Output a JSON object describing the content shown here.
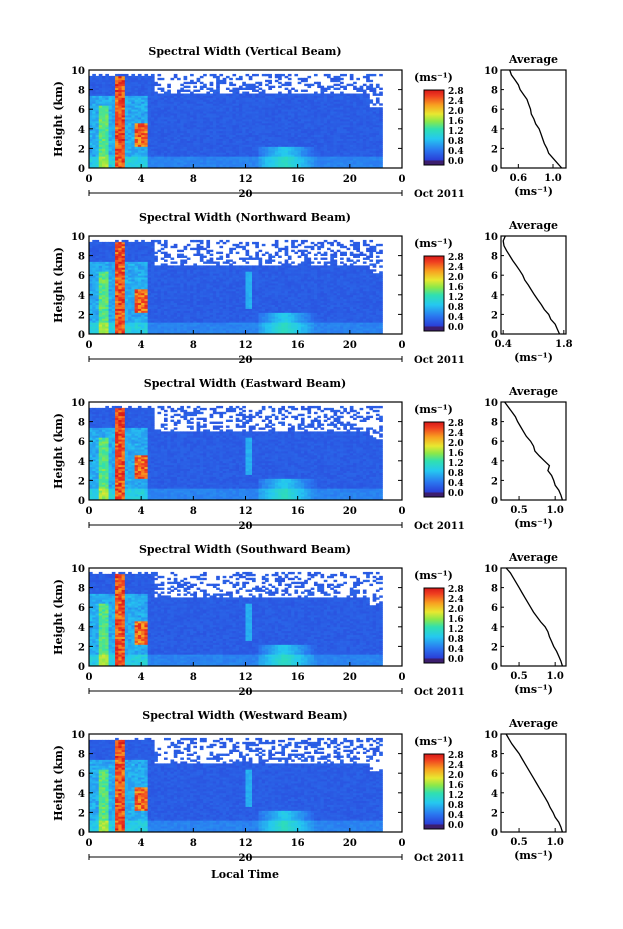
{
  "figure": {
    "xlabel_bottom": "Local Time",
    "date_label": "Oct 2011",
    "day_label": "20",
    "x_ticks": [
      "0",
      "4",
      "8",
      "12",
      "16",
      "20",
      "0"
    ],
    "y_ticks": [
      "0",
      "2",
      "4",
      "6",
      "8",
      "10"
    ],
    "ylabel": "Height (km)",
    "colorbar_unit": "(ms⁻¹)",
    "colorbar_ticks": [
      "0.0",
      "0.4",
      "0.8",
      "1.2",
      "1.6",
      "2.0",
      "2.4",
      "2.8"
    ],
    "avg_title": "Average",
    "avg_xlabel": "(ms⁻¹)"
  },
  "chart_data": [
    {
      "type": "heatmap",
      "title": "Spectral Width (Vertical Beam)",
      "xlabel": "",
      "ylabel": "Height (km)",
      "xlim": [
        0,
        24
      ],
      "ylim": [
        0,
        10
      ],
      "clim": [
        0,
        3.0
      ],
      "average_profile": {
        "type": "line",
        "title": "Average",
        "xticks": [
          "0.6",
          "1.0"
        ],
        "xlim": [
          0.4,
          1.15
        ],
        "heights": [
          0,
          0.5,
          1,
          1.5,
          2,
          2.5,
          3,
          3.5,
          4,
          4.5,
          5,
          5.5,
          6,
          6.5,
          7,
          7.5,
          8,
          8.5,
          9,
          9.5,
          10
        ],
        "values": [
          1.1,
          1.05,
          1.0,
          0.95,
          0.93,
          0.9,
          0.88,
          0.86,
          0.84,
          0.8,
          0.78,
          0.75,
          0.74,
          0.72,
          0.7,
          0.66,
          0.62,
          0.6,
          0.56,
          0.52,
          0.5
        ]
      }
    },
    {
      "type": "heatmap",
      "title": "Spectral Width (Northward Beam)",
      "xlabel": "",
      "ylabel": "Height (km)",
      "xlim": [
        0,
        24
      ],
      "ylim": [
        0,
        10
      ],
      "clim": [
        0,
        3.0
      ],
      "average_profile": {
        "type": "line",
        "title": "Average",
        "xticks": [
          "0.4",
          "1.8"
        ],
        "xlim": [
          0.35,
          1.85
        ],
        "heights": [
          0,
          0.5,
          1,
          1.5,
          2,
          2.5,
          3,
          3.5,
          4,
          4.5,
          5,
          5.5,
          6,
          6.5,
          7,
          7.5,
          8,
          8.5,
          9,
          9.5,
          10
        ],
        "values": [
          1.7,
          1.65,
          1.6,
          1.5,
          1.45,
          1.35,
          1.28,
          1.2,
          1.12,
          1.05,
          0.98,
          0.9,
          0.85,
          0.78,
          0.7,
          0.62,
          0.55,
          0.48,
          0.42,
          0.4,
          0.45
        ]
      }
    },
    {
      "type": "heatmap",
      "title": "Spectral Width (Eastward Beam)",
      "xlabel": "",
      "ylabel": "Height (km)",
      "xlim": [
        0,
        24
      ],
      "ylim": [
        0,
        10
      ],
      "clim": [
        0,
        3.0
      ],
      "average_profile": {
        "type": "line",
        "title": "Average",
        "xticks": [
          "0.5",
          "1.0"
        ],
        "xlim": [
          0.25,
          1.15
        ],
        "heights": [
          0,
          0.5,
          1,
          1.5,
          2,
          2.5,
          3,
          3.5,
          4,
          4.5,
          5,
          5.5,
          6,
          6.5,
          7,
          7.5,
          8,
          8.5,
          9,
          9.5,
          10
        ],
        "values": [
          1.1,
          1.08,
          1.05,
          1.0,
          0.98,
          0.95,
          0.9,
          0.92,
          0.85,
          0.78,
          0.72,
          0.7,
          0.66,
          0.6,
          0.56,
          0.52,
          0.48,
          0.45,
          0.4,
          0.35,
          0.3
        ]
      }
    },
    {
      "type": "heatmap",
      "title": "Spectral Width (Southward Beam)",
      "xlabel": "",
      "ylabel": "Height (km)",
      "xlim": [
        0,
        24
      ],
      "ylim": [
        0,
        10
      ],
      "clim": [
        0,
        3.0
      ],
      "average_profile": {
        "type": "line",
        "title": "Average",
        "xticks": [
          "0.5",
          "1.0"
        ],
        "xlim": [
          0.25,
          1.15
        ],
        "heights": [
          0,
          0.5,
          1,
          1.5,
          2,
          2.5,
          3,
          3.5,
          4,
          4.5,
          5,
          5.5,
          6,
          6.5,
          7,
          7.5,
          8,
          8.5,
          9,
          9.5,
          10
        ],
        "values": [
          1.1,
          1.08,
          1.05,
          1.02,
          0.98,
          0.95,
          0.92,
          0.9,
          0.86,
          0.8,
          0.75,
          0.7,
          0.66,
          0.62,
          0.58,
          0.54,
          0.5,
          0.46,
          0.42,
          0.38,
          0.32
        ]
      }
    },
    {
      "type": "heatmap",
      "title": "Spectral Width (Westward Beam)",
      "xlabel": "Local Time",
      "ylabel": "Height (km)",
      "xlim": [
        0,
        24
      ],
      "ylim": [
        0,
        10
      ],
      "clim": [
        0,
        3.0
      ],
      "average_profile": {
        "type": "line",
        "title": "Average",
        "xticks": [
          "0.5",
          "1.0"
        ],
        "xlim": [
          0.25,
          1.15
        ],
        "heights": [
          0,
          0.5,
          1,
          1.5,
          2,
          2.5,
          3,
          3.5,
          4,
          4.5,
          5,
          5.5,
          6,
          6.5,
          7,
          7.5,
          8,
          8.5,
          9,
          9.5,
          10
        ],
        "values": [
          1.1,
          1.08,
          1.05,
          1.0,
          0.97,
          0.93,
          0.9,
          0.86,
          0.82,
          0.78,
          0.74,
          0.7,
          0.66,
          0.62,
          0.58,
          0.54,
          0.5,
          0.45,
          0.4,
          0.36,
          0.32
        ]
      }
    }
  ]
}
